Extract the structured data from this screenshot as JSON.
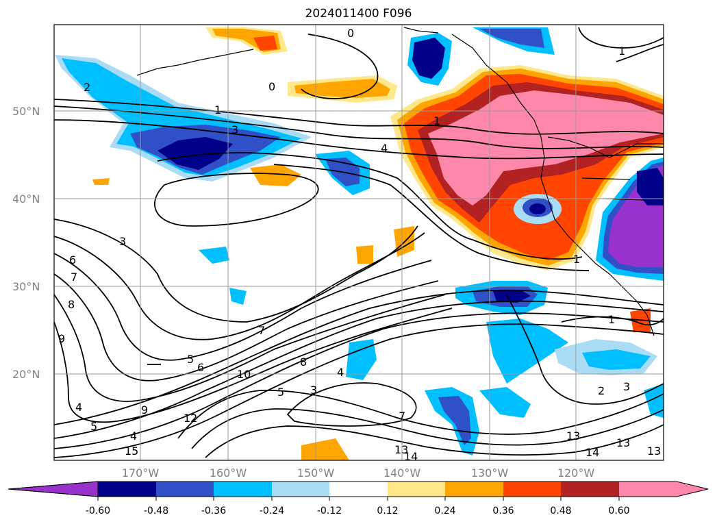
{
  "title": "2024011400 F096",
  "lat_labels": [
    "50°N",
    "40°N",
    "30°N",
    "20°N"
  ],
  "lon_labels": [
    "170°W",
    "160°W",
    "150°W",
    "140°W",
    "130°W",
    "120°W"
  ],
  "colorbar": {
    "tick_labels": [
      "-0.60",
      "-0.48",
      "-0.36",
      "-0.24",
      "-0.12",
      "0.12",
      "0.24",
      "0.36",
      "0.48",
      "0.60"
    ],
    "colors": [
      "#9932cc",
      "#00008b",
      "#3050c8",
      "#00bfff",
      "#aadcf5",
      "#ffffff",
      "#ffe88a",
      "#ffa500",
      "#ff4500",
      "#b22222",
      "#ff88aa"
    ]
  },
  "map": {
    "region": "Northeast Pacific",
    "contour_labels": [
      "1",
      "2",
      "3",
      "4",
      "5",
      "6",
      "7",
      "8",
      "9",
      "10",
      "12",
      "13",
      "14",
      "15",
      "0"
    ]
  }
}
